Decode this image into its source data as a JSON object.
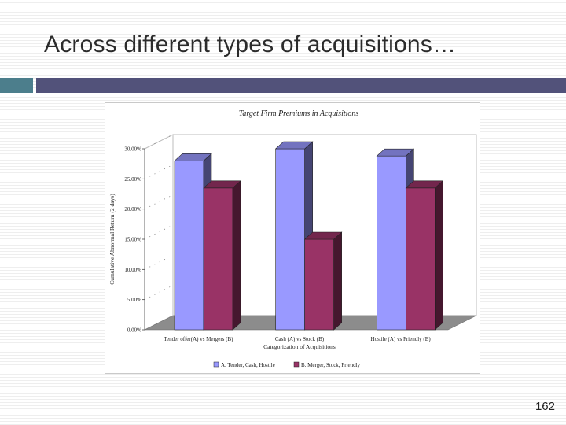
{
  "slide": {
    "title": "Across different types of acquisitions…",
    "page_number": "162"
  },
  "colors": {
    "accent_square": "#4c7e8c",
    "title_bar": "#52527a",
    "series_a": "#9999ff",
    "series_b": "#993366",
    "floor": "#8c8c8c"
  },
  "chart_data": {
    "type": "bar",
    "three_d": true,
    "title": "Target Firm Premiums in Acquisitions",
    "xlabel": "Categorization of Acquisitions",
    "ylabel": "Cumulative Abnormal Return (2 days)",
    "ylim": [
      0,
      30
    ],
    "ytick_values": [
      0,
      5,
      10,
      15,
      20,
      25,
      30
    ],
    "yticks": [
      "0.00%",
      "5.00%",
      "10.00%",
      "15.00%",
      "20.00%",
      "25.00%",
      "30.00%"
    ],
    "categories": [
      "Tender offer(A) vs Mergers (B)",
      "Cash (A) vs Stock (B)",
      "Hostile (A) vs Friendly (B)"
    ],
    "series": [
      {
        "name": "A. Tender, Cash, Hostile",
        "values": [
          28,
          30,
          28.8
        ]
      },
      {
        "name": "B. Merger, Stock, Friendly",
        "values": [
          23.5,
          15,
          23.5
        ]
      }
    ],
    "legend": "bottom",
    "grid": false
  }
}
